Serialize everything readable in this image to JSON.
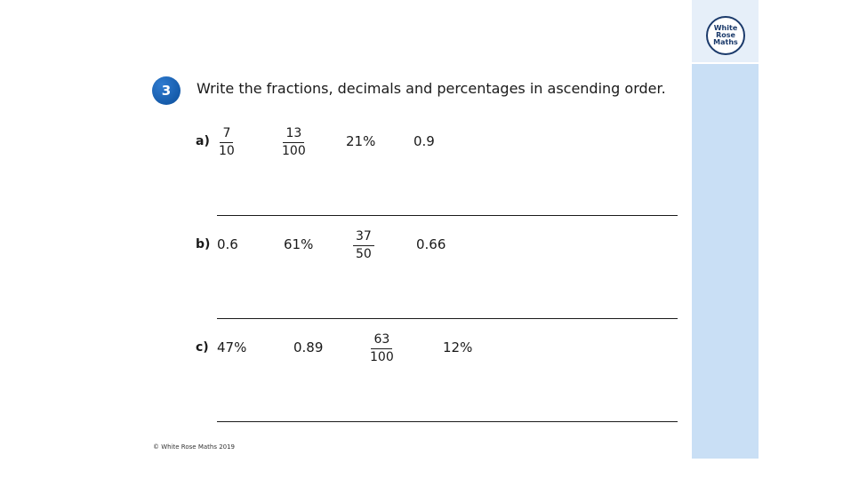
{
  "logo": {
    "line1": "White",
    "line2": "Rose",
    "line3": "Maths"
  },
  "question": {
    "number": "3",
    "text": "Write the fractions, decimals and percentages in ascending order."
  },
  "parts": [
    {
      "label": "a)",
      "items": [
        {
          "type": "fraction",
          "numerator": "7",
          "denominator": "10"
        },
        {
          "type": "fraction",
          "numerator": "13",
          "denominator": "100"
        },
        {
          "type": "text",
          "value": "21%"
        },
        {
          "type": "text",
          "value": "0.9"
        }
      ]
    },
    {
      "label": "b)",
      "items": [
        {
          "type": "text",
          "value": "0.6"
        },
        {
          "type": "text",
          "value": "61%"
        },
        {
          "type": "fraction",
          "numerator": "37",
          "denominator": "50"
        },
        {
          "type": "text",
          "value": "0.66"
        }
      ]
    },
    {
      "label": "c)",
      "items": [
        {
          "type": "text",
          "value": "47%"
        },
        {
          "type": "text",
          "value": "0.89"
        },
        {
          "type": "fraction",
          "numerator": "63",
          "denominator": "100"
        },
        {
          "type": "text",
          "value": "12%"
        }
      ]
    }
  ],
  "footer": {
    "copyright": "© White Rose Maths 2019"
  },
  "colors": {
    "accent": "#0b4e9a",
    "sidebar": "#c9dff5",
    "brand": "#1b3a6b"
  }
}
